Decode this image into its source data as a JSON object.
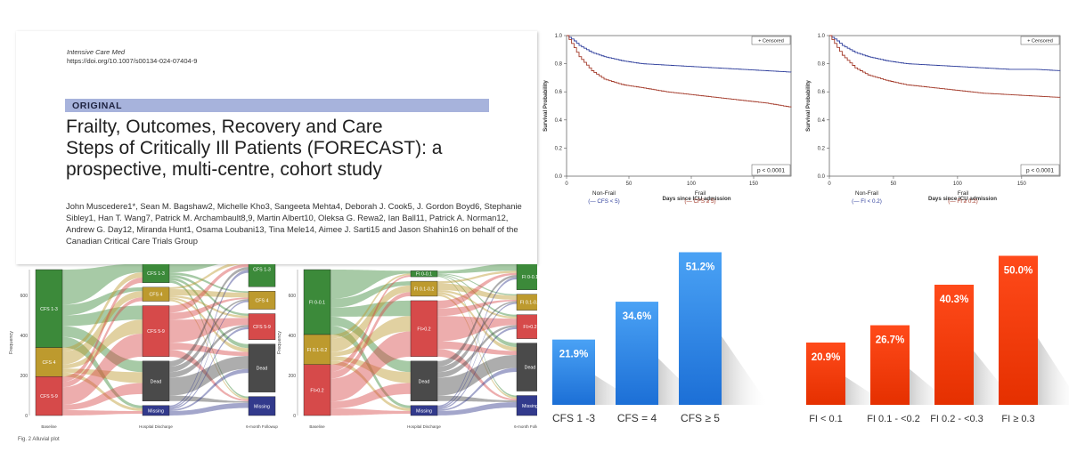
{
  "paper": {
    "journal": "Intensive Care Med",
    "doi": "https://doi.org/10.1007/s00134-024-07404-9",
    "label": "ORIGINAL",
    "title_lines": [
      "Frailty, Outcomes, Recovery and Care",
      "Steps of Critically Ill Patients (FORECAST): a",
      "prospective, multi-centre, cohort study"
    ],
    "authors": "John Muscedere1*, Sean M. Bagshaw2, Michelle Kho3, Sangeeta Mehta4, Deborah J. Cook5, J. Gordon Boyd6, Stephanie Sibley1, Han T. Wang7, Patrick M. Archambault8,9, Martin Albert10, Oleksa G. Rewa2, Ian Ball11, Patrick A. Norman12, Andrew G. Day12, Miranda Hunt1, Osama Loubani13, Tina Mele14, Aimee J. Sarti15 and Jason Shahin16 on behalf of the Canadian Critical Care Trials Group"
  },
  "sankey": {
    "ylabel": "Frequency",
    "stage_labels": [
      "Baseline",
      "Hospital Discharge",
      "6-month Followup"
    ],
    "caption": "Fig. 2  Alluvial plot",
    "colors": {
      "green": "#3c8a3a",
      "gold": "#bd9a2e",
      "red": "#d64a4a",
      "dead": "#4a4a4a",
      "missing": "#323a8c"
    },
    "charts": [
      {
        "yticks": [
          "0",
          "200",
          "400",
          "600"
        ],
        "stages": [
          [
            {
              "label": "CFS 1-3",
              "c": "green",
              "v": 390
            },
            {
              "label": "CFS 4",
              "c": "gold",
              "v": 145
            },
            {
              "label": "CFS 5-9",
              "c": "red",
              "v": 195
            }
          ],
          [
            {
              "label": "CFS 1-3",
              "c": "green",
              "v": 95
            },
            {
              "label": "CFS 4",
              "c": "gold",
              "v": 70
            },
            {
              "label": "CFS 5-9",
              "c": "red",
              "v": 255
            },
            {
              "label": "Dead",
              "c": "dead",
              "v": 200
            },
            {
              "label": "Missing",
              "c": "missing",
              "v": 50
            }
          ],
          [
            {
              "label": "CFS 1-3",
              "c": "green",
              "v": 175
            },
            {
              "label": "CFS 4",
              "c": "gold",
              "v": 90
            },
            {
              "label": "CFS 5-9",
              "c": "red",
              "v": 130
            },
            {
              "label": "Dead",
              "c": "dead",
              "v": 240
            },
            {
              "label": "Missing",
              "c": "missing",
              "v": 95
            }
          ]
        ]
      },
      {
        "yticks": [
          "0",
          "200",
          "400",
          "600"
        ],
        "stages": [
          [
            {
              "label": "FI 0-0.1",
              "c": "green",
              "v": 325
            },
            {
              "label": "FI 0.1-0.2",
              "c": "gold",
              "v": 150
            },
            {
              "label": "FI>0.2",
              "c": "red",
              "v": 255
            }
          ],
          [
            {
              "label": "FI 0-0.1",
              "c": "green",
              "v": 30
            },
            {
              "label": "FI 0.1-0.2",
              "c": "gold",
              "v": 75
            },
            {
              "label": "FI>0.2",
              "c": "red",
              "v": 280
            },
            {
              "label": "Dead",
              "c": "dead",
              "v": 200
            },
            {
              "label": "Missing",
              "c": "missing",
              "v": 50
            }
          ],
          [
            {
              "label": "FI 0-0.1",
              "c": "green",
              "v": 130
            },
            {
              "label": "FI 0.1-0.2",
              "c": "gold",
              "v": 80
            },
            {
              "label": "FI>0.2",
              "c": "red",
              "v": 120
            },
            {
              "label": "Dead",
              "c": "dead",
              "v": 240
            },
            {
              "label": "Missing",
              "c": "missing",
              "v": 100
            }
          ]
        ]
      }
    ]
  },
  "chart_data": [
    {
      "type": "line",
      "ylabel": "Survival Probability",
      "xlabel": "Days since ICU admission",
      "xlim": [
        0,
        180
      ],
      "ylim": [
        0.0,
        1.0
      ],
      "xticks": [
        "0",
        "50",
        "100",
        "150"
      ],
      "yticks": [
        "0.0",
        "0.2",
        "0.4",
        "0.6",
        "0.8",
        "1.0"
      ],
      "legend": "+ Censored",
      "pvalue": "p < 0.0001",
      "group_labels": [
        {
          "name": "Non-Frail",
          "sub": "(— CFS < 5)",
          "color": "#2f3f9c"
        },
        {
          "name": "Frail",
          "sub": "(— CFS ≥ 5)",
          "color": "#a33a2a"
        }
      ],
      "series": [
        {
          "color": "#2f3f9c",
          "x": [
            0,
            5,
            10,
            20,
            30,
            45,
            60,
            80,
            100,
            120,
            140,
            160,
            180
          ],
          "y": [
            1.0,
            0.97,
            0.93,
            0.88,
            0.85,
            0.82,
            0.8,
            0.79,
            0.78,
            0.77,
            0.76,
            0.75,
            0.74
          ]
        },
        {
          "color": "#a33a2a",
          "x": [
            0,
            5,
            10,
            20,
            30,
            45,
            60,
            80,
            100,
            120,
            140,
            160,
            180
          ],
          "y": [
            1.0,
            0.93,
            0.85,
            0.75,
            0.69,
            0.65,
            0.63,
            0.6,
            0.58,
            0.56,
            0.54,
            0.52,
            0.49
          ]
        }
      ]
    },
    {
      "type": "line",
      "ylabel": "Survival Probability",
      "xlabel": "Days since ICU admission",
      "xlim": [
        0,
        180
      ],
      "ylim": [
        0.0,
        1.0
      ],
      "xticks": [
        "0",
        "50",
        "100",
        "150"
      ],
      "yticks": [
        "0.0",
        "0.2",
        "0.4",
        "0.6",
        "0.8",
        "1.0"
      ],
      "legend": "+ Censored",
      "pvalue": "p < 0.0001",
      "group_labels": [
        {
          "name": "Non-Frail",
          "sub": "(— FI < 0.2)",
          "color": "#2f3f9c"
        },
        {
          "name": "Frail",
          "sub": "(— FI ≥ 0.2)",
          "color": "#a33a2a"
        }
      ],
      "series": [
        {
          "color": "#2f3f9c",
          "x": [
            0,
            5,
            10,
            20,
            30,
            45,
            60,
            80,
            100,
            120,
            140,
            160,
            180
          ],
          "y": [
            1.0,
            0.97,
            0.93,
            0.88,
            0.85,
            0.82,
            0.8,
            0.79,
            0.78,
            0.77,
            0.76,
            0.76,
            0.75
          ]
        },
        {
          "color": "#a33a2a",
          "x": [
            0,
            5,
            10,
            20,
            30,
            45,
            60,
            80,
            100,
            120,
            140,
            160,
            180
          ],
          "y": [
            1.0,
            0.93,
            0.86,
            0.77,
            0.72,
            0.68,
            0.65,
            0.63,
            0.61,
            0.59,
            0.58,
            0.57,
            0.56
          ]
        }
      ]
    },
    {
      "type": "bar",
      "categories": [
        "CFS  1 -3",
        "CFS = 4",
        "CFS  ≥ 5"
      ],
      "values": [
        21.9,
        34.6,
        51.2
      ],
      "labels": [
        "21.9%",
        "34.6%",
        "51.2%"
      ],
      "ylim": [
        0,
        55
      ],
      "color_top": "#4aa2f5",
      "color_bottom": "#1c6fd6"
    },
    {
      "type": "bar",
      "categories": [
        "FI < 0.1",
        "FI 0.1 - <0.2",
        "FI 0.2 - <0.3",
        "FI ≥ 0.3"
      ],
      "values": [
        20.9,
        26.7,
        40.3,
        50.0
      ],
      "labels": [
        "20.9%",
        "26.7%",
        "40.3%",
        "50.0%"
      ],
      "ylim": [
        0,
        55
      ],
      "color_top": "#ff4a1a",
      "color_bottom": "#e53000"
    }
  ]
}
